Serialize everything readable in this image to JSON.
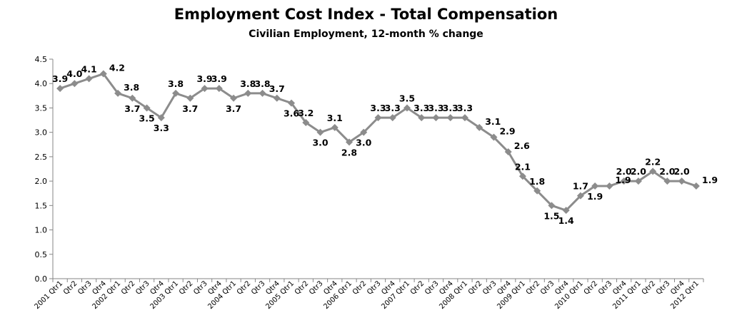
{
  "chart_data": {
    "type": "line",
    "title": "Employment Cost Index - Total Compensation",
    "subtitle": "Civilian Employment, 12-month % change",
    "xlabel": "",
    "ylabel": "",
    "ylim": [
      0,
      4.5
    ],
    "y_ticks": [
      "0.0",
      "0.5",
      "1.0",
      "1.5",
      "2.0",
      "2.5",
      "3.0",
      "3.5",
      "4.0",
      "4.5"
    ],
    "grid": false,
    "legend": "none",
    "line_color": "#8c8c8c",
    "categories": [
      "2001 Qtr1",
      "Qtr2",
      "Qtr3",
      "Qtr4",
      "2002 Qtr1",
      "Qtr2",
      "Qtr3",
      "Qtr4",
      "2003 Qtr1",
      "Qtr2",
      "Qtr3",
      "Qtr4",
      "2004 Qtr1",
      "Qtr2",
      "Qtr3",
      "Qtr4",
      "2005 Qtr1",
      "Qtr2",
      "Qtr3",
      "Qtr4",
      "2006 Qtr1",
      "Qtr2",
      "Qtr3",
      "Qtr4",
      "2007 Qtr1",
      "Qtr2",
      "Qtr3",
      "Qtr4",
      "2008 Qtr1",
      "Qtr2",
      "Qtr3",
      "Qtr4",
      "2009 Qtr1",
      "Qtr2",
      "Qtr3",
      "Qtr4",
      "2010 Qtr1",
      "Qtr2",
      "Qtr3",
      "Qtr4",
      "2011 Qtr1",
      "Qtr2",
      "Qtr3",
      "Qtr4",
      "2012 Qtr1"
    ],
    "values": [
      3.9,
      4.0,
      4.1,
      4.2,
      3.8,
      3.7,
      3.5,
      3.3,
      3.8,
      3.7,
      3.9,
      3.9,
      3.7,
      3.8,
      3.8,
      3.7,
      3.6,
      3.2,
      3.0,
      3.1,
      2.8,
      3.0,
      3.3,
      3.3,
      3.5,
      3.3,
      3.3,
      3.3,
      3.3,
      3.1,
      2.9,
      2.6,
      2.1,
      1.8,
      1.5,
      1.4,
      1.7,
      1.9,
      1.9,
      2.0,
      2.0,
      2.2,
      2.0,
      2.0,
      1.9
    ],
    "data_labels": [
      "3.9",
      "4.0",
      "4.1",
      "4.2",
      "3.8",
      "3.7",
      "3.5",
      "3.3",
      "3.8",
      "3.7",
      "3.9",
      "3.9",
      "3.7",
      "3.8",
      "3.8",
      "3.7",
      "3.6",
      "3.2",
      "3.0",
      "3.1",
      "2.8",
      "3.0",
      "3.3",
      "3.3",
      "3.5",
      "3.3",
      "3.3",
      "3.3",
      "3.3",
      "3.1",
      "2.9",
      "2.6",
      "2.1",
      "1.8",
      "1.5",
      "1.4",
      "1.7",
      "1.9",
      "1.9",
      "2.0",
      "2.0",
      "2.2",
      "2.0",
      "2.0",
      "1.9"
    ],
    "label_position": [
      "above",
      "above",
      "above",
      "right",
      "right",
      "below",
      "below",
      "below",
      "above",
      "below",
      "above",
      "above",
      "below",
      "above",
      "above",
      "above",
      "below",
      "above",
      "below",
      "above",
      "below",
      "below",
      "above",
      "above",
      "above",
      "above",
      "above",
      "above",
      "above",
      "right",
      "right",
      "right",
      "above",
      "above",
      "below",
      "below",
      "above",
      "below",
      "right",
      "above",
      "above",
      "above",
      "above",
      "above",
      "right"
    ]
  }
}
